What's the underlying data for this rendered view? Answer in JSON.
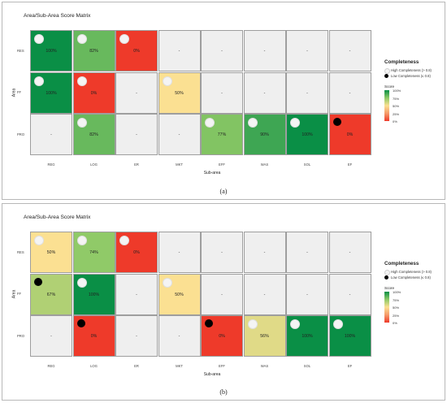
{
  "chart_data": [
    {
      "type": "heatmap",
      "panel_label": "(a)",
      "title": "Area/Sub-Area Score Matrix",
      "xlabel": "Sub-area",
      "ylabel": "Area",
      "rows": [
        "RES",
        "FF",
        "PRO"
      ],
      "columns": [
        "REG",
        "LOG",
        "ER",
        "MKT",
        "EFF",
        "WAS",
        "SOL",
        "EF"
      ],
      "values": [
        [
          100,
          82,
          0,
          null,
          null,
          null,
          null,
          null
        ],
        [
          100,
          0,
          null,
          50,
          null,
          null,
          null,
          null
        ],
        [
          null,
          82,
          null,
          null,
          77,
          90,
          100,
          0
        ]
      ],
      "labels": [
        [
          "100%",
          "82%",
          "0%",
          "-",
          "-",
          "-",
          "-",
          "-"
        ],
        [
          "100%",
          "0%",
          "-",
          "50%",
          "-",
          "-",
          "-",
          "-"
        ],
        [
          "-",
          "82%",
          "-",
          "-",
          "77%",
          "90%",
          "100%",
          "0%"
        ]
      ],
      "completeness": [
        [
          "high",
          "high",
          "high",
          null,
          null,
          null,
          null,
          null
        ],
        [
          "high",
          "high",
          null,
          "high",
          null,
          null,
          null,
          null
        ],
        [
          null,
          "high",
          null,
          null,
          "high",
          "high",
          "high",
          "low"
        ]
      ],
      "legend": {
        "completeness_title": "Completeness",
        "high": "High Completeness (> 0.8)",
        "low": "Low Completeness (≤ 0.8)",
        "score_title": "Score",
        "score_ticks": [
          "100%",
          "75%",
          "50%",
          "25%",
          "0%"
        ]
      }
    },
    {
      "type": "heatmap",
      "panel_label": "(b)",
      "title": "Area/Sub-Area Score Matrix",
      "xlabel": "Sub-area",
      "ylabel": "Area",
      "rows": [
        "RES",
        "FF",
        "PRO"
      ],
      "columns": [
        "REG",
        "LOG",
        "ER",
        "MKT",
        "EFF",
        "WAS",
        "SOL",
        "EF"
      ],
      "values": [
        [
          50,
          74,
          0,
          null,
          null,
          null,
          null,
          null
        ],
        [
          67,
          100,
          null,
          50,
          null,
          null,
          null,
          null
        ],
        [
          null,
          0,
          null,
          null,
          0,
          56,
          100,
          100
        ]
      ],
      "labels": [
        [
          "50%",
          "74%",
          "0%",
          "-",
          "-",
          "-",
          "-",
          "-"
        ],
        [
          "67%",
          "100%",
          "-",
          "50%",
          "-",
          "-",
          "-",
          "-"
        ],
        [
          "-",
          "0%",
          "-",
          "-",
          "0%",
          "56%",
          "100%",
          "100%"
        ]
      ],
      "completeness": [
        [
          "high",
          "high",
          "high",
          null,
          null,
          null,
          null,
          null
        ],
        [
          "low",
          "high",
          null,
          "high",
          null,
          null,
          null,
          null
        ],
        [
          null,
          "low",
          null,
          null,
          "low",
          "high",
          "high",
          "high"
        ]
      ],
      "legend": {
        "completeness_title": "Completeness",
        "high": "High Completeness (> 0.8)",
        "low": "Low Completeness (≤ 0.8)",
        "score_title": "Score",
        "score_ticks": [
          "100%",
          "75%",
          "50%",
          "25%",
          "0%"
        ]
      }
    }
  ],
  "colors": {
    "missing": "#efefef",
    "scale": [
      "#ee3a2a",
      "#f59a6a",
      "#fbe092",
      "#8cc966",
      "#0a8f46"
    ]
  }
}
